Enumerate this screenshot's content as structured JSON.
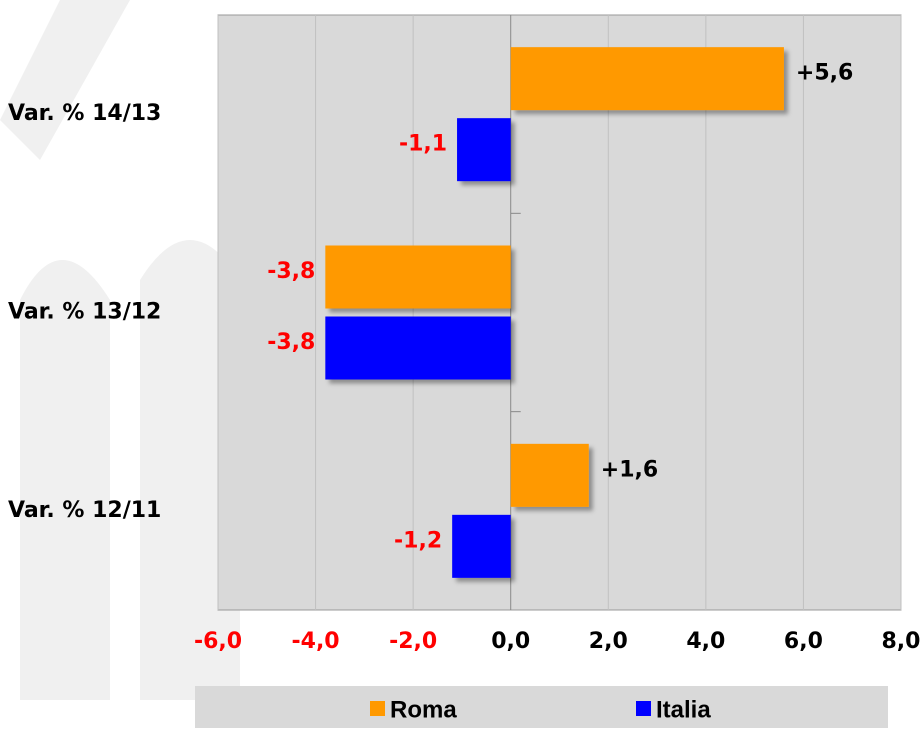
{
  "chart_data": {
    "type": "barh",
    "categories": [
      "Var. % 14/13",
      "Var. % 13/12",
      "Var. % 12/11"
    ],
    "series": [
      {
        "name": "Roma",
        "color": "#ff9900",
        "values": [
          5.6,
          -3.8,
          1.6
        ],
        "value_labels": [
          "+5,6",
          "-3,8",
          "+1,6"
        ]
      },
      {
        "name": "Italia",
        "color": "#0000ff",
        "values": [
          -1.1,
          -3.8,
          -1.2
        ],
        "value_labels": [
          "-1,1",
          "-3,8",
          "-1,2"
        ]
      }
    ],
    "xlim": [
      -6,
      8
    ],
    "xticks": [
      {
        "value": -6,
        "label": "-6,0"
      },
      {
        "value": -4,
        "label": "-4,0"
      },
      {
        "value": -2,
        "label": "-2,0"
      },
      {
        "value": 0,
        "label": "0,0"
      },
      {
        "value": 2,
        "label": "2,0"
      },
      {
        "value": 4,
        "label": "4,0"
      },
      {
        "value": 6,
        "label": "6,0"
      },
      {
        "value": 8,
        "label": "8,0"
      }
    ],
    "grid": true,
    "legend": "bottom"
  }
}
